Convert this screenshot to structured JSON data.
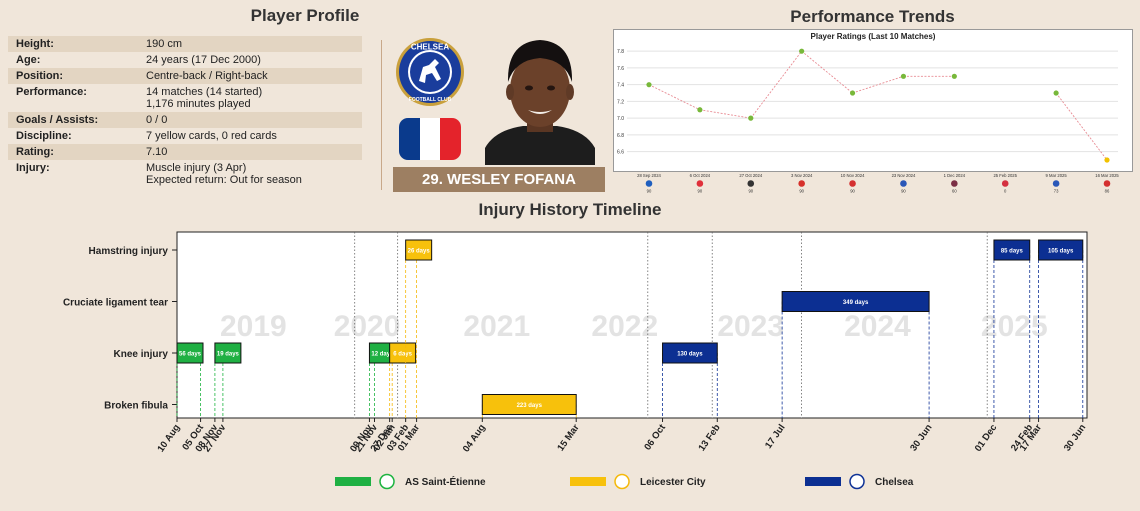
{
  "profile": {
    "title": "Player Profile",
    "rows": [
      {
        "label": "Height:",
        "value": "190 cm",
        "value2": ""
      },
      {
        "label": "Age:",
        "value": "24 years (17 Dec 2000)",
        "value2": ""
      },
      {
        "label": "Position:",
        "value": "Centre-back / Right-back",
        "value2": ""
      },
      {
        "label": "Performance:",
        "value": "14 matches (14 started)",
        "value2": "1,176 minutes played"
      },
      {
        "label": "Goals / Assists:",
        "value": "0 / 0",
        "value2": ""
      },
      {
        "label": "Discipline:",
        "value": "7 yellow cards, 0 red cards",
        "value2": ""
      },
      {
        "label": "Rating:",
        "value": "7.10",
        "value2": ""
      },
      {
        "label": "Injury:",
        "value": "Muscle injury (3 Apr)",
        "value2": "Expected return: Out for season"
      }
    ]
  },
  "player": {
    "name": "29. WESLEY FOFANA",
    "badge_text_top": "CHELSEA",
    "badge_text_bottom": "FOOTBALL CLUB",
    "flag": "france-flag"
  },
  "trends": {
    "title": "Performance Trends"
  },
  "colors": {
    "saint_etienne": "#1db440",
    "leicester": "#f5b90b",
    "chelsea": "#0f3296",
    "background": "#f0e6da"
  },
  "chart_data": [
    {
      "type": "line",
      "title": "Player Ratings (Last 10 Matches)",
      "x": [
        "28 Sep 2024",
        "6 Oct 2024",
        "27 Oct 2024",
        "3 Nov 2024",
        "10 Nov 2024",
        "23 Nov 2024",
        "1 Dec 2024",
        "25 Feb 2025",
        "9 Mar 2025",
        "16 Mar 2025"
      ],
      "y": [
        7.4,
        7.1,
        7.0,
        7.8,
        7.3,
        7.5,
        7.5,
        null,
        7.3,
        6.5
      ],
      "minutes": [
        "90",
        "90",
        "90",
        "90",
        "90",
        "90",
        "60",
        "0",
        "73",
        "86"
      ],
      "opponent_icons": [
        "brighton-icon",
        "nottingham-forest-icon",
        "newcastle-icon",
        "man-utd-icon",
        "arsenal-icon",
        "leicester-icon",
        "aston-villa-icon",
        "southampton-icon",
        "leicester-icon",
        "arsenal-icon"
      ],
      "ylim": [
        6.5,
        7.85
      ],
      "yticks": [
        "6.6",
        "6.8",
        "7.0",
        "7.2",
        "7.4",
        "7.6",
        "7.8"
      ],
      "grid": true
    },
    {
      "type": "timeline",
      "title": "Injury History Timeline",
      "categories": [
        "Hamstring injury",
        "Cruciate ligament tear",
        "Knee injury",
        "Broken fibula"
      ],
      "year_labels": [
        "2019",
        "2020",
        "2021",
        "2022",
        "2023",
        "2024",
        "2025"
      ],
      "injuries": [
        {
          "type": "Knee injury",
          "start": "2019-08-10",
          "end": "2019-10-05",
          "days_label": "56 days",
          "club": "AS Saint-Étienne"
        },
        {
          "type": "Knee injury",
          "start": "2019-11-08",
          "end": "2019-11-27",
          "days_label": "19 days",
          "club": "AS Saint-Étienne"
        },
        {
          "type": "Knee injury",
          "start": "2020-11-09",
          "end": "2020-11-21",
          "days_label": "12 days",
          "club": "AS Saint-Étienne"
        },
        {
          "type": "Knee injury",
          "start": "2020-12-27",
          "end": "2021-01-02",
          "days_label": "6 days",
          "club": "Leicester City"
        },
        {
          "type": "Hamstring injury",
          "start": "2021-02-03",
          "end": "2021-03-01",
          "days_label": "26 days",
          "club": "Leicester City"
        },
        {
          "type": "Broken fibula",
          "start": "2021-08-04",
          "end": "2022-03-15",
          "days_label": "223 days",
          "club": "Leicester City"
        },
        {
          "type": "Knee injury",
          "start": "2022-10-06",
          "end": "2023-02-13",
          "days_label": "130 days",
          "club": "Chelsea"
        },
        {
          "type": "Cruciate ligament tear",
          "start": "2023-07-17",
          "end": "2024-06-30",
          "days_label": "349 days",
          "club": "Chelsea"
        },
        {
          "type": "Hamstring injury",
          "start": "2024-12-01",
          "end": "2025-02-24",
          "days_label": "85 days",
          "club": "Chelsea"
        },
        {
          "type": "Hamstring injury",
          "start": "2025-03-17",
          "end": "2025-06-30",
          "days_label": "105 days",
          "club": "Chelsea"
        }
      ],
      "xticks": [
        {
          "date": "2019-08-10",
          "label": "10 Aug"
        },
        {
          "date": "2019-10-05",
          "label": "05 Oct"
        },
        {
          "date": "2019-11-08",
          "label": "08 Nov"
        },
        {
          "date": "2019-11-27",
          "label": "27 Nov"
        },
        {
          "date": "2020-11-09",
          "label": "09 Nov"
        },
        {
          "date": "2020-11-21",
          "label": "21 Nov"
        },
        {
          "date": "2020-12-27",
          "label": "27 Dec"
        },
        {
          "date": "2021-01-02",
          "label": "02 Jan"
        },
        {
          "date": "2021-02-03",
          "label": "03 Feb"
        },
        {
          "date": "2021-03-01",
          "label": "01 Mar"
        },
        {
          "date": "2021-08-04",
          "label": "04 Aug"
        },
        {
          "date": "2022-03-15",
          "label": "15 Mar"
        },
        {
          "date": "2022-10-06",
          "label": "06 Oct"
        },
        {
          "date": "2023-02-13",
          "label": "13 Feb"
        },
        {
          "date": "2023-07-17",
          "label": "17 Jul"
        },
        {
          "date": "2024-06-30",
          "label": "30 Jun"
        },
        {
          "date": "2024-12-01",
          "label": "01 Dec"
        },
        {
          "date": "2025-02-24",
          "label": "24 Feb"
        },
        {
          "date": "2025-03-17",
          "label": "17 Mar"
        },
        {
          "date": "2025-06-30",
          "label": "30 Jun"
        }
      ],
      "club_change_dates": [
        "2020-10-05",
        "2021-01-15",
        "2022-09-01",
        "2023-02-01",
        "2023-09-01",
        "2024-11-15"
      ],
      "legend": [
        {
          "name": "AS Saint-Étienne",
          "color": "#1db440",
          "icon": "saint-etienne-badge-icon"
        },
        {
          "name": "Leicester City",
          "color": "#f5b90b",
          "icon": "leicester-badge-icon"
        },
        {
          "name": "Chelsea",
          "color": "#0f3296",
          "icon": "chelsea-badge-icon"
        }
      ]
    }
  ]
}
